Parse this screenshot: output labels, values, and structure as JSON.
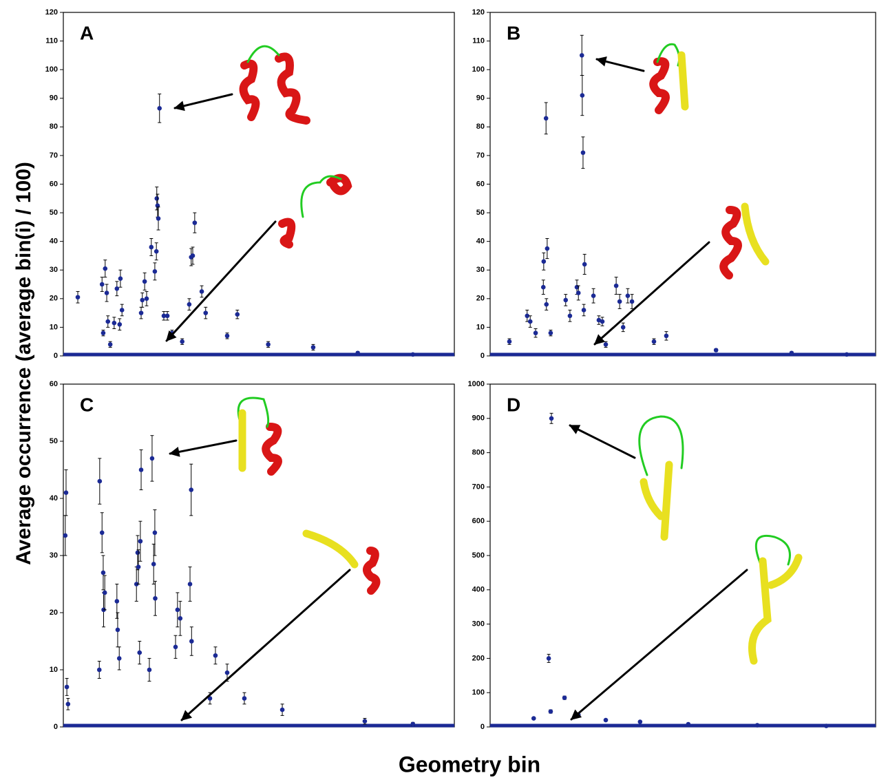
{
  "figure": {
    "ylabel": "Average occurrence (average bin(i) / 100)",
    "xlabel": "Geometry bin"
  },
  "chart_data": [
    {
      "type": "scatter",
      "label": "A",
      "color": "#1b2a95",
      "xlim": [
        0,
        1000
      ],
      "ylim": [
        0,
        120
      ],
      "yticks": [
        0,
        10,
        20,
        30,
        40,
        50,
        60,
        70,
        80,
        90,
        100,
        110,
        120
      ],
      "x": [
        37,
        99,
        107,
        111,
        114,
        130,
        137,
        146,
        144,
        150,
        199,
        202,
        208,
        213,
        225,
        234,
        238,
        239,
        241,
        243,
        246,
        257,
        266,
        322,
        327,
        331,
        336,
        354,
        364,
        445,
        102,
        120,
        278,
        304,
        419,
        524,
        639,
        753,
        894
      ],
      "values": [
        20.5,
        25,
        30.5,
        22,
        12,
        11.5,
        23.5,
        27,
        11,
        16,
        15,
        19.5,
        26,
        20,
        38,
        29.5,
        36.5,
        55,
        52.5,
        48,
        86.5,
        14,
        14,
        18,
        34.5,
        35,
        46.5,
        22.5,
        15,
        14.5,
        8,
        4,
        8,
        5,
        7,
        4,
        3,
        1,
        0.5
      ],
      "errors": [
        2,
        2.5,
        3,
        3,
        2,
        2,
        2.5,
        3,
        2,
        2,
        2,
        2.5,
        3,
        2.5,
        3,
        3,
        3,
        4,
        4,
        4,
        5,
        1.5,
        1.5,
        2,
        3,
        3,
        3.5,
        2,
        2,
        1.5,
        1,
        1,
        1,
        1,
        1,
        1,
        1,
        0.5,
        0.3
      ]
    },
    {
      "type": "scatter",
      "label": "B",
      "color": "#1b2a95",
      "xlim": [
        0,
        1000
      ],
      "ylim": [
        0,
        120
      ],
      "yticks": [
        0,
        10,
        20,
        30,
        40,
        50,
        60,
        70,
        80,
        90,
        100,
        110,
        120
      ],
      "x": [
        145,
        238,
        239,
        241,
        139,
        148,
        138,
        146,
        96,
        104,
        118,
        196,
        207,
        225,
        229,
        245,
        243,
        268,
        282,
        291,
        327,
        336,
        357,
        368,
        345,
        50,
        157,
        300,
        425,
        457,
        586,
        782,
        925
      ],
      "values": [
        83,
        105,
        91,
        71,
        33,
        37.5,
        24,
        18,
        14,
        12,
        8,
        19.5,
        14,
        24,
        22,
        32,
        16,
        21,
        12.5,
        12,
        24.5,
        19,
        21,
        19,
        10,
        5,
        8,
        4,
        5,
        7,
        2,
        1,
        0.5
      ],
      "errors": [
        5.5,
        7,
        7,
        5.5,
        3,
        3.5,
        2.5,
        2,
        2,
        2,
        1.5,
        2,
        2,
        2.5,
        2.5,
        3.5,
        2,
        2.5,
        1.5,
        1.5,
        3,
        2.5,
        2.5,
        2.5,
        1.5,
        1,
        1,
        1,
        1,
        1.5,
        0.5,
        0.5,
        0.3
      ]
    },
    {
      "type": "scatter",
      "label": "C",
      "color": "#1b2a95",
      "xlim": [
        0,
        1000
      ],
      "ylim": [
        0,
        60
      ],
      "yticks": [
        0,
        10,
        20,
        30,
        40,
        50,
        60
      ],
      "x": [
        7,
        5,
        9,
        12,
        93,
        99,
        102,
        103,
        106,
        92,
        137,
        139,
        143,
        199,
        190,
        197,
        187,
        192,
        227,
        234,
        231,
        235,
        195,
        220,
        292,
        299,
        287,
        327,
        324,
        328,
        389,
        419,
        375,
        463,
        560,
        771,
        894
      ],
      "values": [
        41,
        33.5,
        7,
        4,
        43,
        34,
        27,
        20.5,
        23.5,
        10,
        22,
        17,
        12,
        45,
        30.5,
        32.5,
        25,
        28,
        47,
        34,
        28.5,
        22.5,
        13,
        10,
        20.5,
        19,
        14,
        41.5,
        25,
        15,
        12.5,
        9.5,
        5,
        5,
        3,
        1,
        0.5
      ],
      "errors": [
        4,
        3.5,
        1.5,
        1,
        4,
        3.5,
        3,
        3,
        3,
        1.5,
        3,
        3,
        2,
        3.5,
        3,
        3.5,
        3,
        3,
        4,
        4,
        3.5,
        3,
        2,
        2,
        3,
        3,
        2,
        4.5,
        3,
        2.5,
        1.5,
        1.5,
        1,
        1,
        1,
        0.5,
        0.3
      ]
    },
    {
      "type": "scatter",
      "label": "D",
      "color": "#1b2a95",
      "xlim": [
        0,
        1000
      ],
      "ylim": [
        0,
        1000
      ],
      "yticks": [
        0,
        100,
        200,
        300,
        400,
        500,
        600,
        700,
        800,
        900,
        1000
      ],
      "x": [
        159,
        152,
        193,
        157,
        113,
        229,
        300,
        389,
        514,
        693,
        872
      ],
      "values": [
        900,
        200,
        85,
        45,
        25,
        35,
        20,
        15,
        8,
        5,
        3
      ],
      "errors": [
        15,
        12,
        5,
        5,
        3,
        4,
        3,
        3,
        2,
        1,
        1
      ]
    }
  ]
}
